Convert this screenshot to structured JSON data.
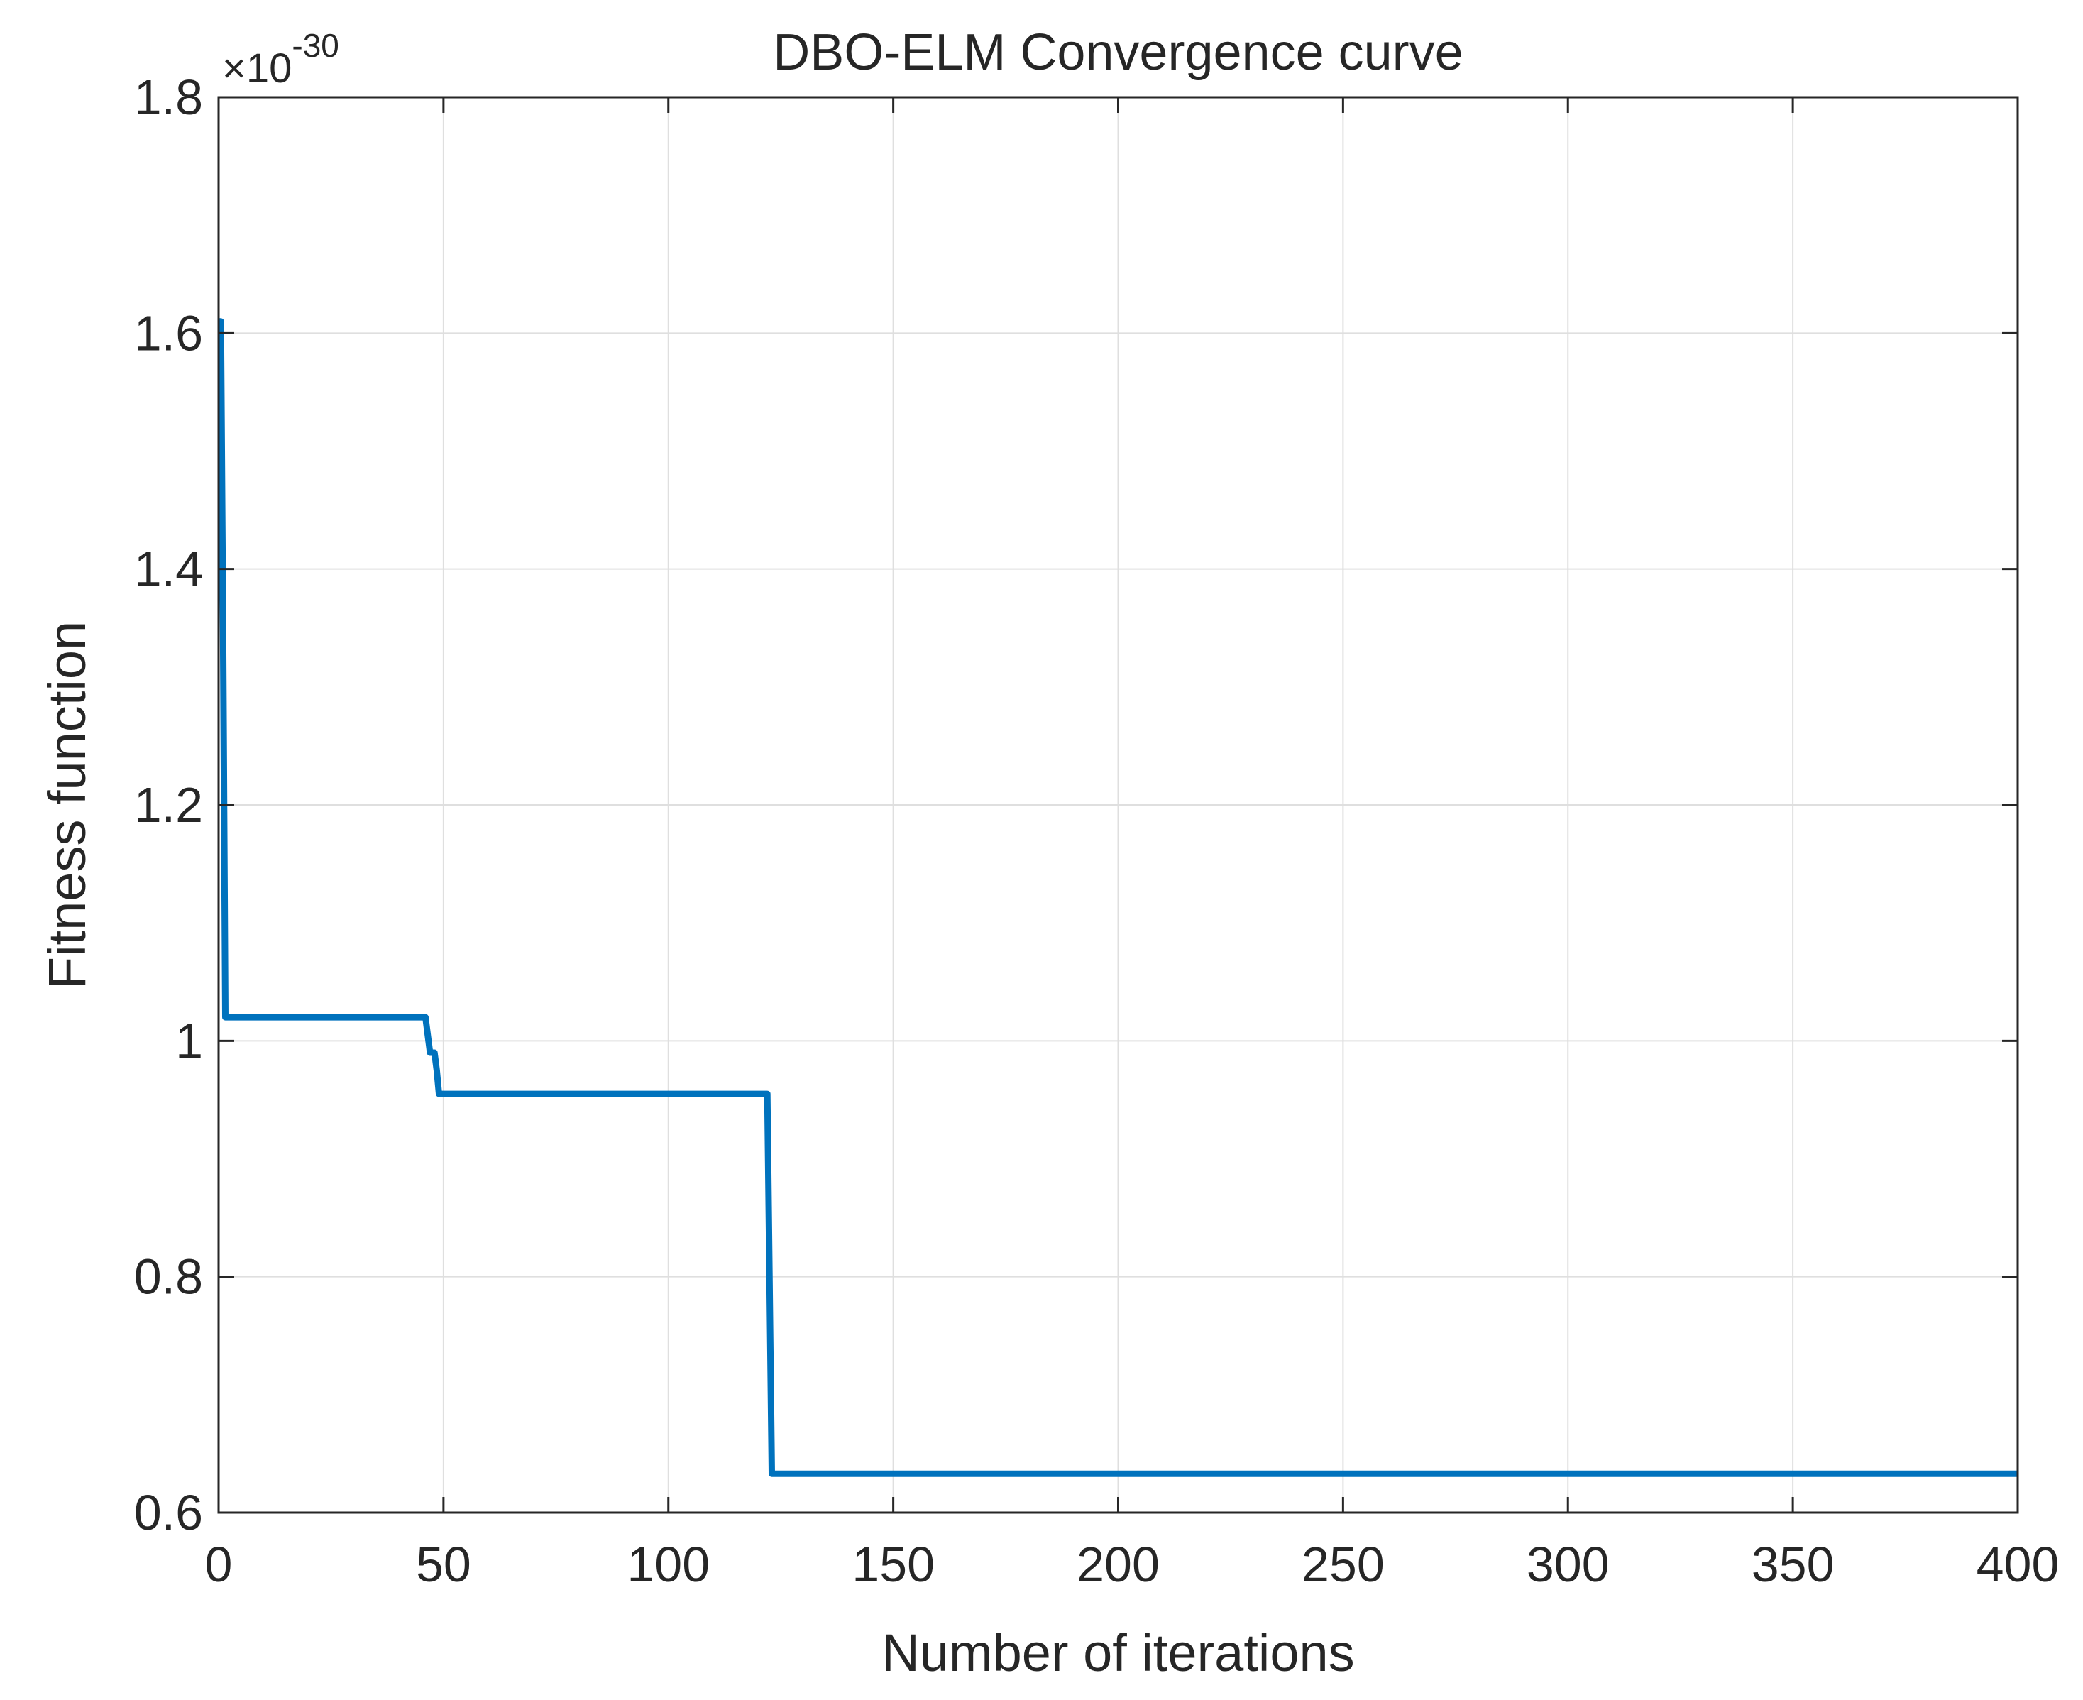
{
  "chart_data": {
    "type": "line",
    "title": "DBO-ELM Convergence curve",
    "xlabel": "Number of iterations",
    "ylabel": "Fitness function",
    "y_exponent_label": {
      "prefix": "×10",
      "exponent": "-30"
    },
    "xlim": [
      0,
      400
    ],
    "ylim": [
      0.6,
      1.8
    ],
    "xticks": [
      0,
      50,
      100,
      150,
      200,
      250,
      300,
      350,
      400
    ],
    "xtick_labels": [
      "0",
      "50",
      "100",
      "150",
      "200",
      "250",
      "300",
      "350",
      "400"
    ],
    "yticks": [
      0.6,
      0.8,
      1.0,
      1.2,
      1.4,
      1.6,
      1.8
    ],
    "ytick_labels": [
      "0.6",
      "0.8",
      "1",
      "1.2",
      "1.4",
      "1.6",
      "1.8"
    ],
    "grid": true,
    "legend": null,
    "series": [
      {
        "color": "#0072BD",
        "x": [
          0,
          0.5,
          1,
          1.5,
          2,
          46,
          47,
          48,
          48.5,
          49,
          122,
          123,
          400
        ],
        "y": [
          1.61,
          1.61,
          1.35,
          1.02,
          1.02,
          1.02,
          0.99,
          0.99,
          0.975,
          0.955,
          0.955,
          0.633,
          0.633
        ]
      }
    ]
  }
}
